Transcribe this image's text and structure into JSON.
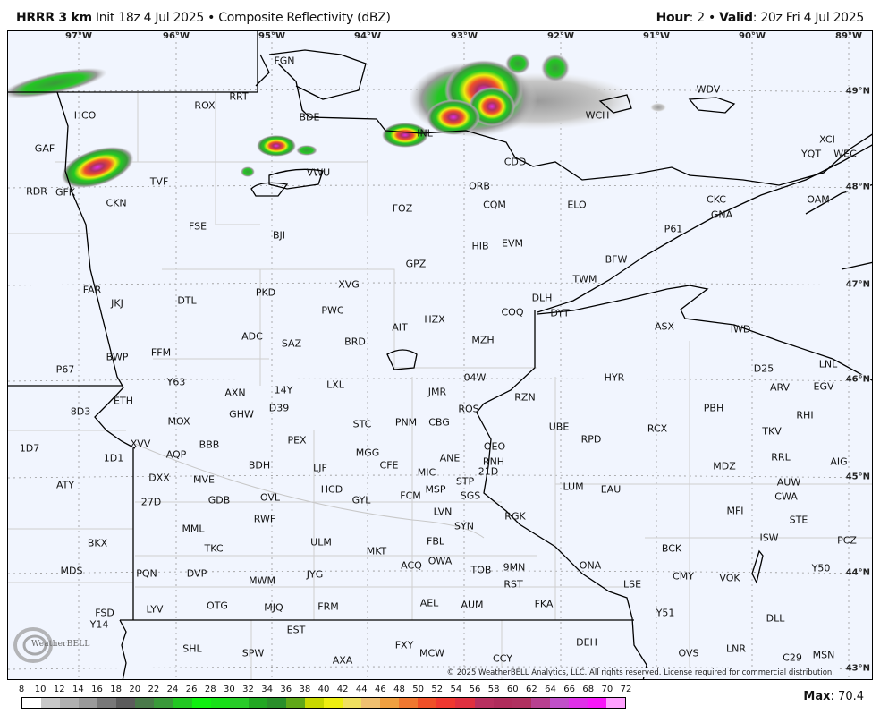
{
  "header": {
    "model": "HRRR 3 km",
    "init": "Init 18z 4 Jul 2025",
    "bullet": "•",
    "product": "Composite Reflectivity (dBZ)",
    "hour_label": "Hour",
    "hour": "2",
    "valid_label": "Valid",
    "valid": "20z Fri 4 Jul 2025"
  },
  "map": {
    "longitudes": [
      "97°W",
      "96°W",
      "95°W",
      "94°W",
      "93°W",
      "92°W",
      "91°W",
      "90°W",
      "89°W"
    ],
    "latitudes": [
      "49°N",
      "48°N",
      "47°N",
      "46°N",
      "45°N",
      "44°N",
      "43°N"
    ],
    "stations": [
      "FGN",
      "RRT",
      "ROX",
      "BDE",
      "HCO",
      "INL",
      "WCH",
      "WDV",
      "GAF",
      "VWU",
      "CDD",
      "XCI",
      "YQT",
      "WEC",
      "RDR",
      "GFK",
      "TVF",
      "CKN",
      "ORB",
      "CQM",
      "ELO",
      "CKC",
      "GNA",
      "OAM",
      "FOZ",
      "FSE",
      "BJI",
      "HIB",
      "EVM",
      "P61",
      "GPZ",
      "BFW",
      "FAR",
      "JKJ",
      "DTL",
      "PKD",
      "XVG",
      "TWM",
      "DLH",
      "DYT",
      "COQ",
      "PWC",
      "HZX",
      "AIT",
      "ADC",
      "SAZ",
      "BRD",
      "MZH",
      "ASX",
      "IWD",
      "FFM",
      "BWP",
      "P67",
      "D25",
      "LNL",
      "04W",
      "HYR",
      "Y63",
      "LXL",
      "14Y",
      "AXN",
      "JMR",
      "RZN",
      "ARV",
      "EGV",
      "ETH",
      "8D3",
      "D39",
      "GHW",
      "PBH",
      "ROS",
      "STC",
      "PNM",
      "CBG",
      "RHI",
      "MOX",
      "UBE",
      "RPD",
      "RCX",
      "TKV",
      "PEX",
      "BBB",
      "OEO",
      "1D7",
      "XVV",
      "1D1",
      "AQP",
      "MGG",
      "CFE",
      "RRL",
      "RNH",
      "AIG",
      "BDH",
      "LJF",
      "ANE",
      "MIC",
      "MDZ",
      "21D",
      "DXX",
      "MVE",
      "STP",
      "AUW",
      "ATY",
      "MSP",
      "SGS",
      "LUM",
      "EAU",
      "HCD",
      "FCM",
      "CWA",
      "27D",
      "GDB",
      "OVL",
      "GYL",
      "MFI",
      "LVN",
      "RGK",
      "RWF",
      "STE",
      "SYN",
      "MML",
      "ISW",
      "FBL",
      "ULM",
      "BCK",
      "PCZ",
      "TKC",
      "MKT",
      "BKX",
      "ACQ",
      "OWA",
      "TOB",
      "9MN",
      "ONA",
      "MDS",
      "PQN",
      "DVP",
      "JYG",
      "MWM",
      "CMY",
      "VOK",
      "Y50",
      "RST",
      "LSE",
      "FSD",
      "LYV",
      "OTG",
      "MJQ",
      "FRM",
      "AEL",
      "AUM",
      "FKA",
      "Y51",
      "Y14",
      "DLL",
      "EST",
      "SHL",
      "SPW",
      "FXY",
      "MCW",
      "DEH",
      "AXA",
      "CCY",
      "OVS",
      "LNR",
      "C29",
      "MSN"
    ],
    "copyright": "© 2025 WeatherBELL Analytics, LLC. All rights reserved. License required for commercial distribution.",
    "logo_text": "WeatherBELL"
  },
  "legend": {
    "ticks": [
      "8",
      "10",
      "12",
      "14",
      "16",
      "18",
      "20",
      "22",
      "24",
      "26",
      "28",
      "30",
      "32",
      "34",
      "36",
      "38",
      "40",
      "42",
      "44",
      "46",
      "48",
      "50",
      "52",
      "54",
      "56",
      "58",
      "60",
      "62",
      "64",
      "66",
      "68",
      "70",
      "72"
    ],
    "colors": [
      "#ffffff",
      "#c8c8c8",
      "#b0b0b0",
      "#9a9a9a",
      "#787878",
      "#5c5c5c",
      "#4a7a4a",
      "#3a9a3a",
      "#22c822",
      "#10f010",
      "#18e018",
      "#28cc28",
      "#22a822",
      "#2a8f2a",
      "#60a818",
      "#c8d800",
      "#eeee10",
      "#f0e060",
      "#f0c070",
      "#f0a040",
      "#f07830",
      "#f05028",
      "#f03830",
      "#e03040",
      "#b83060",
      "#b02c5c",
      "#b03060",
      "#b84090",
      "#c050c8",
      "#e030e8",
      "#f818f8",
      "#ffa0ff"
    ],
    "max_label": "Max",
    "max_value": "70.4"
  }
}
